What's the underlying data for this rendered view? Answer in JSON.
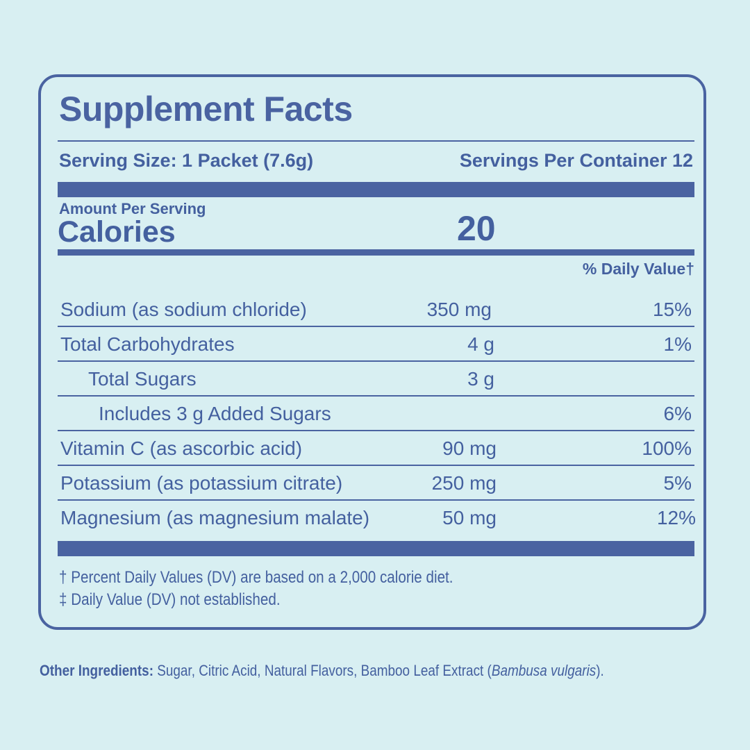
{
  "label": {
    "title": "Supplement Facts",
    "serving_size": "Serving Size: 1 Packet (7.6g)",
    "servings_per_container": "Servings Per Container 12",
    "amount_per_serving": "Amount Per Serving",
    "calories_label": "Calories",
    "calories_value": "20",
    "daily_value_header": "% Daily Value†"
  },
  "nutrients": [
    {
      "name": "Sodium (as sodium chloride)",
      "amount": "350 mg",
      "dv": "15%",
      "indent": 0
    },
    {
      "name": "Total Carbohydrates",
      "amount": "4 g",
      "dv": "1%",
      "indent": 0
    },
    {
      "name": "Total Sugars",
      "amount": "3 g",
      "dv": "",
      "indent": 1
    },
    {
      "name": "Includes 3 g Added Sugars",
      "amount": "",
      "dv": "6%",
      "indent": 2
    },
    {
      "name": "Vitamin C (as ascorbic acid)",
      "amount": "90 mg",
      "dv": "100%",
      "indent": 0
    },
    {
      "name": "Potassium (as potassium citrate)",
      "amount": "250 mg",
      "dv": "5%",
      "indent": 0
    },
    {
      "name": "Magnesium (as magnesium malate)",
      "amount": "50 mg",
      "dv": "12%",
      "indent": 0
    }
  ],
  "footnotes": {
    "dagger": "† Percent Daily Values (DV) are based on a 2,000 calorie diet.",
    "double_dagger": "‡ Daily Value (DV) not established."
  },
  "other_ingredients": {
    "label": "Other Ingredients:",
    "text": " Sugar, Citric Acid, Natural Flavors, Bamboo Leaf Extract (",
    "italic": "Bambusa vulgaris",
    "end": ")."
  },
  "colors": {
    "ink": "#4a63a1",
    "background": "#d8eff2"
  }
}
